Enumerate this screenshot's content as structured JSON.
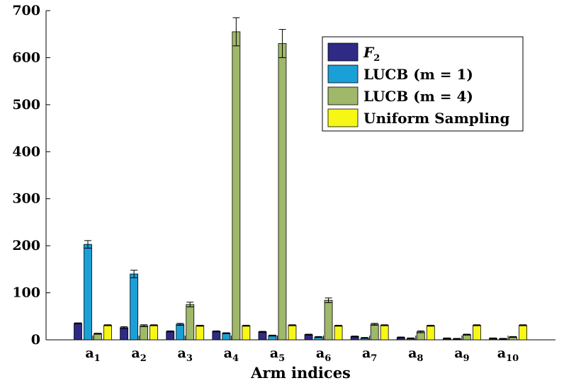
{
  "chart_data": {
    "type": "bar",
    "xlabel": "Arm indices",
    "ylabel": "",
    "ylim": [
      0,
      700
    ],
    "yticks": [
      0,
      100,
      200,
      300,
      400,
      500,
      600,
      700
    ],
    "grid": false,
    "legend_position": "top-right",
    "categories": [
      {
        "base": "a",
        "sub": "1"
      },
      {
        "base": "a",
        "sub": "2"
      },
      {
        "base": "a",
        "sub": "3"
      },
      {
        "base": "a",
        "sub": "4"
      },
      {
        "base": "a",
        "sub": "5"
      },
      {
        "base": "a",
        "sub": "6"
      },
      {
        "base": "a",
        "sub": "7"
      },
      {
        "base": "a",
        "sub": "8"
      },
      {
        "base": "a",
        "sub": "9"
      },
      {
        "base": "a",
        "sub": "10"
      }
    ],
    "series": [
      {
        "name": "F2",
        "label_script": "F",
        "label_sub": "2",
        "color": "#2e2a85",
        "values": [
          35,
          26,
          18,
          18,
          17,
          11,
          7,
          5,
          3,
          3
        ],
        "errors": [
          1,
          2,
          1,
          1,
          1,
          1,
          1,
          1,
          1,
          1
        ]
      },
      {
        "name": "LUCB (m = 1)",
        "label": "LUCB (m = 1)",
        "color": "#1a9fd6",
        "values": [
          203,
          140,
          33,
          14,
          9,
          6,
          4,
          3,
          2,
          2
        ],
        "errors": [
          8,
          8,
          2,
          1,
          1,
          1,
          1,
          1,
          1,
          1
        ]
      },
      {
        "name": "LUCB (m = 4)",
        "label": "LUCB (m = 4)",
        "color": "#9fb869",
        "values": [
          13,
          30,
          75,
          655,
          630,
          84,
          33,
          17,
          11,
          6
        ],
        "errors": [
          1,
          2,
          5,
          30,
          30,
          5,
          2,
          2,
          1,
          1
        ]
      },
      {
        "name": "Uniform Sampling",
        "label": "Uniform Sampling",
        "color": "#f7f716",
        "values": [
          31,
          31,
          30,
          30,
          31,
          30,
          31,
          30,
          31,
          31
        ],
        "errors": [
          1,
          1,
          1,
          1,
          1,
          1,
          1,
          1,
          1,
          1
        ]
      }
    ]
  }
}
